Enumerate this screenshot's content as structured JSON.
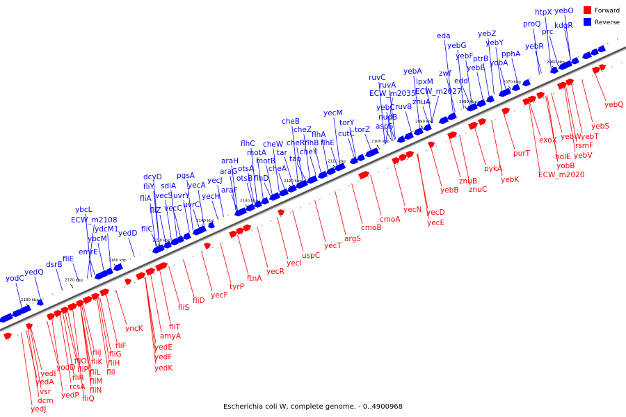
{
  "caption": "Escherichia coli W, complete genome. - 0..4900968",
  "legend": {
    "items": [
      {
        "label": "Forward",
        "color": "#ff0000"
      },
      {
        "label": "Reverse",
        "color": "#0000ff"
      }
    ]
  },
  "colors": {
    "forward": "#ff0000",
    "reverse": "#0000ff",
    "axis": "#555555"
  },
  "scale": {
    "unit": "kbp",
    "ticks": [
      {
        "kb": 2180,
        "label": "2180 kbp"
      },
      {
        "kb": 2170,
        "label": "2170 kbp"
      },
      {
        "kb": 2160,
        "label": "2160 kbp"
      },
      {
        "kb": 2150,
        "label": "2150 kbp"
      },
      {
        "kb": 2140,
        "label": "2140 kbp"
      },
      {
        "kb": 2130,
        "label": "2130 kbp"
      },
      {
        "kb": 2120,
        "label": "2120 kbp"
      },
      {
        "kb": 2110,
        "label": "2110 kbp"
      },
      {
        "kb": 2100,
        "label": "2100 kbp"
      },
      {
        "kb": 2090,
        "label": "2090 kbp"
      },
      {
        "kb": 2080,
        "label": "2080 kbp"
      },
      {
        "kb": 2070,
        "label": "2070 kbp"
      },
      {
        "kb": 2060,
        "label": "2060 kbp"
      }
    ]
  },
  "genes": {
    "reverse": [
      "yodC",
      "yedQ",
      "dsrB",
      "fliE",
      "emrE",
      "ybcM",
      "ydcM1",
      "ECW_m2108",
      "ybcL",
      "yedD",
      "fliC",
      "fliA",
      "fliZ",
      "fliY",
      "dcyD",
      "vecS",
      "vecC",
      "sdiA",
      "uvrY",
      "uvrC",
      "pgsA",
      "yecA",
      "yecH",
      "yecJ",
      "araF",
      "araG",
      "araH",
      "otsB",
      "otsA",
      "motA",
      "flhC",
      "motB",
      "cheW",
      "flhD",
      "cheA",
      "tar",
      "cheR",
      "cheB",
      "tap",
      "cheZ",
      "cheY",
      "flhB",
      "flhA",
      "flhE",
      "yecM",
      "torY",
      "cutC",
      "torZ",
      "aspS",
      "nudB",
      "yebC",
      "ECW_m2035",
      "ruvA",
      "ruvC",
      "ruvB",
      "znuA",
      "yebA",
      "lpxM",
      "ECW_m2027",
      "zwf",
      "edd",
      "yebE",
      "yebF",
      "yebG",
      "eda",
      "ptrB",
      "yobA",
      "yebY",
      "yebZ",
      "pphA",
      "yebR",
      "proQ",
      "prc",
      "htpX",
      "kdgR",
      "yebO"
    ],
    "forward": [
      "yedJ",
      "dcm",
      "vsr",
      "yedA",
      "yedI",
      "yedP",
      "rcsA",
      "yodD",
      "fliR",
      "fliQ",
      "fliN",
      "fliO",
      "fliM",
      "fliP",
      "fliL",
      "fliK",
      "fliJ",
      "fliI",
      "fliH",
      "fliG",
      "fliF",
      "yncK",
      "amyA",
      "fliT",
      "yedE",
      "yedF",
      "yedK",
      "fliS",
      "fliD",
      "yecF",
      "tyrP",
      "ftnA",
      "yecR",
      "yecI",
      "uspC",
      "yecT",
      "argS",
      "cmoB",
      "cmoA",
      "yecN",
      "yecD",
      "yecE",
      "yebB",
      "znuB",
      "znuC",
      "pykA",
      "yebK",
      "purT",
      "ECW_m2020",
      "yobB",
      "holE",
      "exoX",
      "rsmF",
      "yebV",
      "yebT",
      "yebW",
      "yebS",
      "yebQ"
    ]
  }
}
